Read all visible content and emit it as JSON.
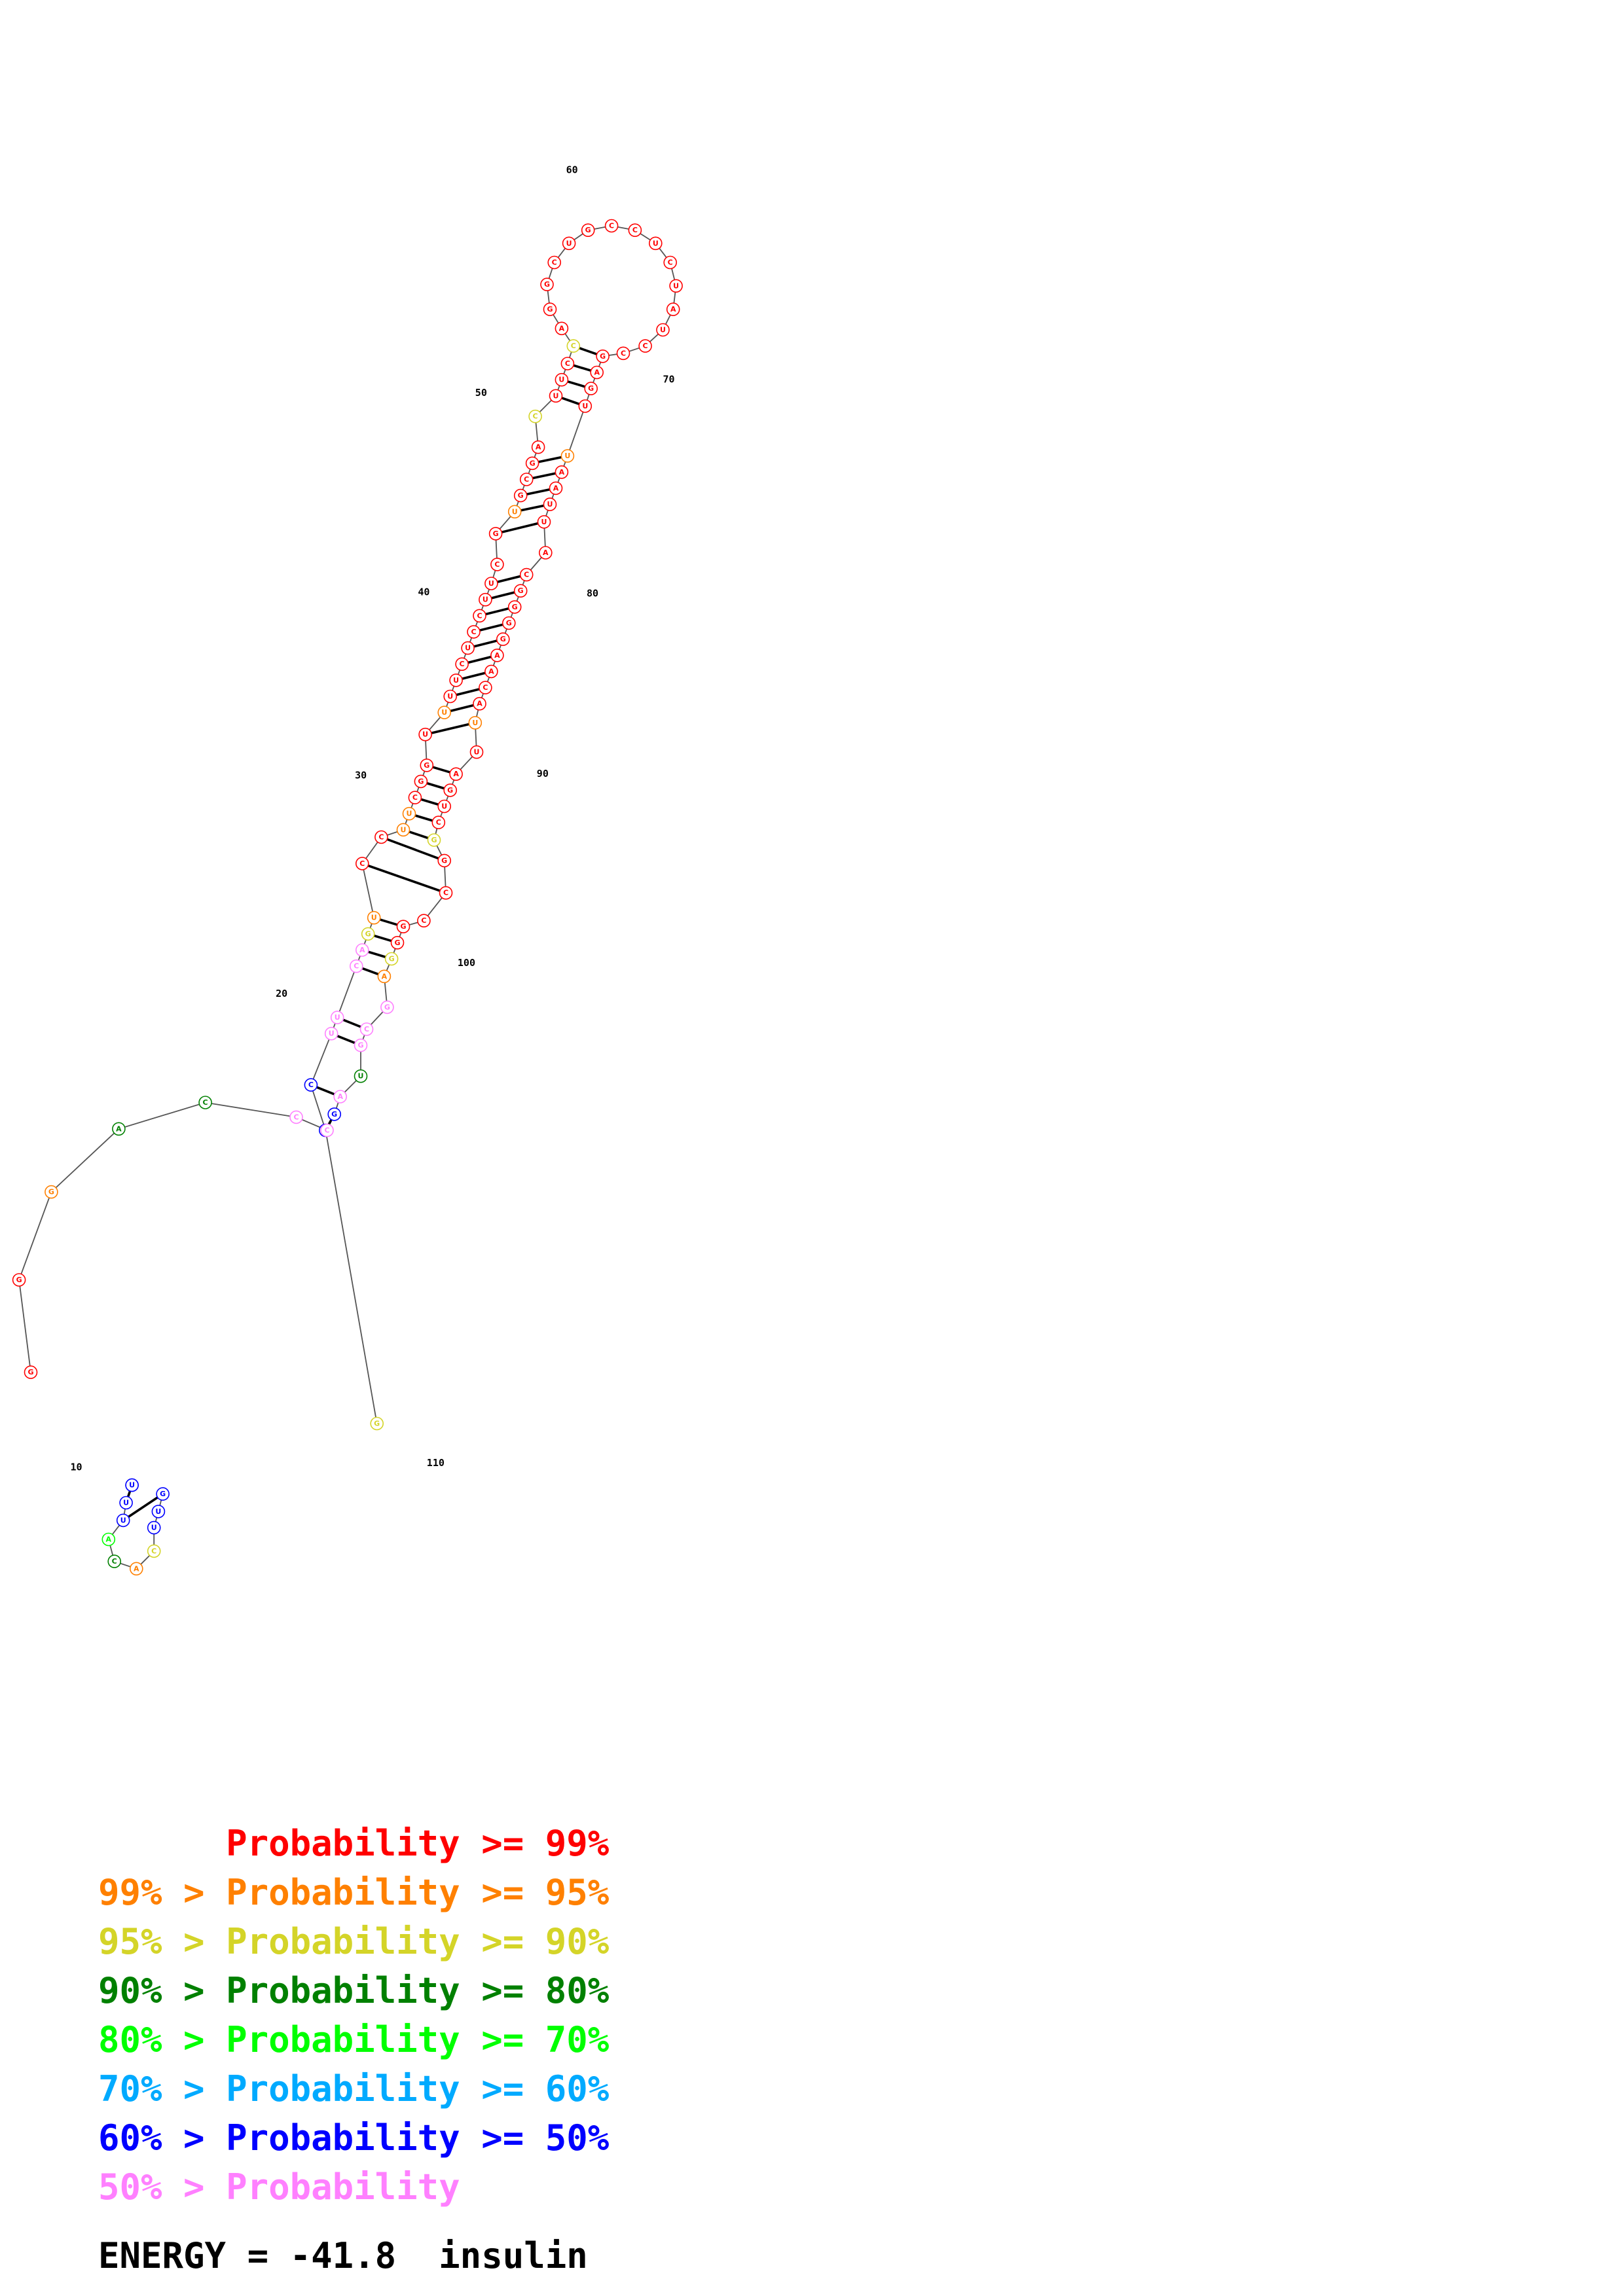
{
  "sequence": "GUCUUCAGUCCUUCGGUUUUCUCCUUCGUGCGACUUCCAGGCUGCCUCUAUCCGAGUUAAUUACGGGGAACAUUAGUCGGCCGGGAGCGUAGCCCAGGGGUUACACUUGU",
  "colors": {
    "p99": "#ff0000",
    "p95": "#ff8000",
    "p90": "#d4d428",
    "p80": "#008000",
    "p70": "#00ff00",
    "p60": "#00aaff",
    "p50": "#0000ff",
    "low": "#ff80ff",
    "black": "#000000"
  },
  "pair_color_keys": [
    "p50",
    "p50",
    "p80",
    "low",
    "low",
    "low",
    "p90",
    "p95",
    "p95",
    "p99",
    "p99",
    "p99",
    "p95",
    "p95",
    "p99",
    "p99",
    "p99",
    "p95",
    "p95",
    "p99",
    "p99",
    "p99",
    "p99",
    "p99",
    "p99",
    "p99",
    "p99",
    "p99",
    "p99",
    "p99",
    "p95",
    "p90",
    "p99",
    "p99",
    "p99",
    "p90"
  ],
  "position_labels": [
    "10",
    "20",
    "30",
    "40",
    "50",
    "60",
    "70",
    "80",
    "90",
    "100",
    "110"
  ],
  "legend": [
    {
      "color": "p99",
      "text": "      Probability >= 99%"
    },
    {
      "color": "p95",
      "text": "99% > Probability >= 95%"
    },
    {
      "color": "p90",
      "text": "95% > Probability >= 90%"
    },
    {
      "color": "p80",
      "text": "90% > Probability >= 80%"
    },
    {
      "color": "p70",
      "text": "80% > Probability >= 70%"
    },
    {
      "color": "p60",
      "text": "70% > Probability >= 60%"
    },
    {
      "color": "p50",
      "text": "60% > Probability >= 50%"
    },
    {
      "color": "low",
      "text": "50% > Probability"
    }
  ],
  "energy_text": "ENERGY = -41.8  insulin"
}
